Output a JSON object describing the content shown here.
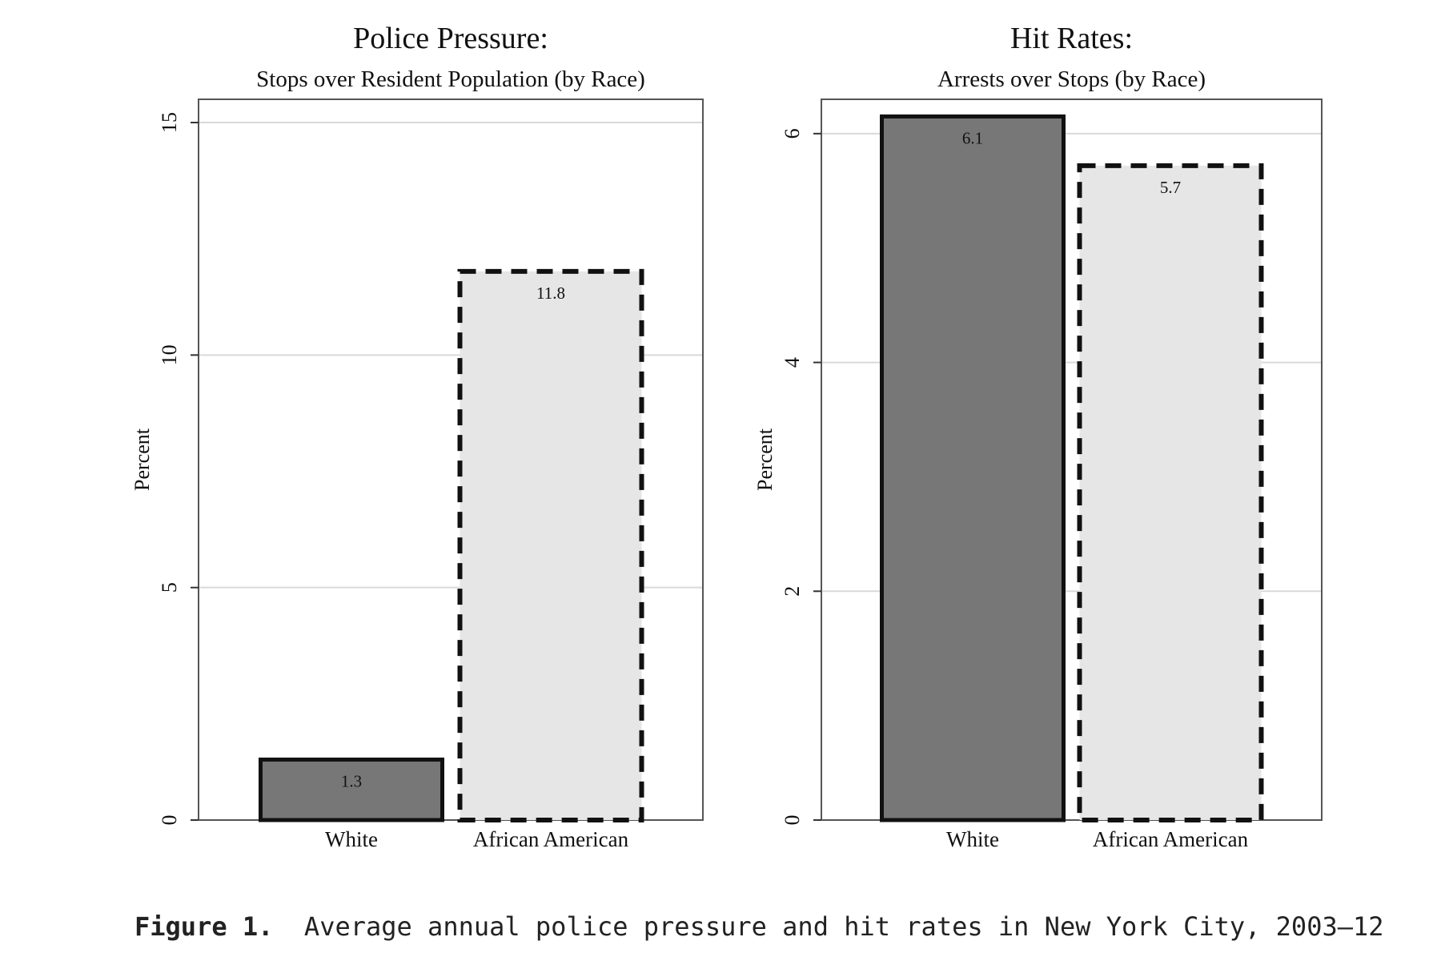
{
  "caption": {
    "label": "Figure 1.",
    "text": "Average annual police pressure and hit rates in New York City, 2003–12"
  },
  "colors": {
    "white_bar": "#777777",
    "african_american_bar": "#e6e6e6",
    "outline": "#111111",
    "grid": "#d9d9d9"
  },
  "chart_data": [
    {
      "type": "bar",
      "title": "Police Pressure:",
      "subtitle": "Stops over Resident Population (by Race)",
      "xlabel": "",
      "ylabel": "Percent",
      "ylim": [
        0,
        15.5
      ],
      "yticks": [
        0,
        5,
        10,
        15
      ],
      "grid": true,
      "categories": [
        "White",
        "African American"
      ],
      "values": [
        1.3,
        11.8
      ],
      "data_labels": [
        "1.3",
        "11.8"
      ],
      "bar_styles": [
        "solid",
        "dashed"
      ]
    },
    {
      "type": "bar",
      "title": "Hit Rates:",
      "subtitle": "Arrests over Stops (by Race)",
      "xlabel": "",
      "ylabel": "Percent",
      "ylim": [
        0,
        6.3
      ],
      "yticks": [
        0,
        2,
        4,
        6
      ],
      "grid": true,
      "categories": [
        "White",
        "African American"
      ],
      "values": [
        6.15,
        5.72
      ],
      "data_labels": [
        "6.1",
        "5.7"
      ],
      "bar_styles": [
        "solid",
        "dashed"
      ]
    }
  ]
}
